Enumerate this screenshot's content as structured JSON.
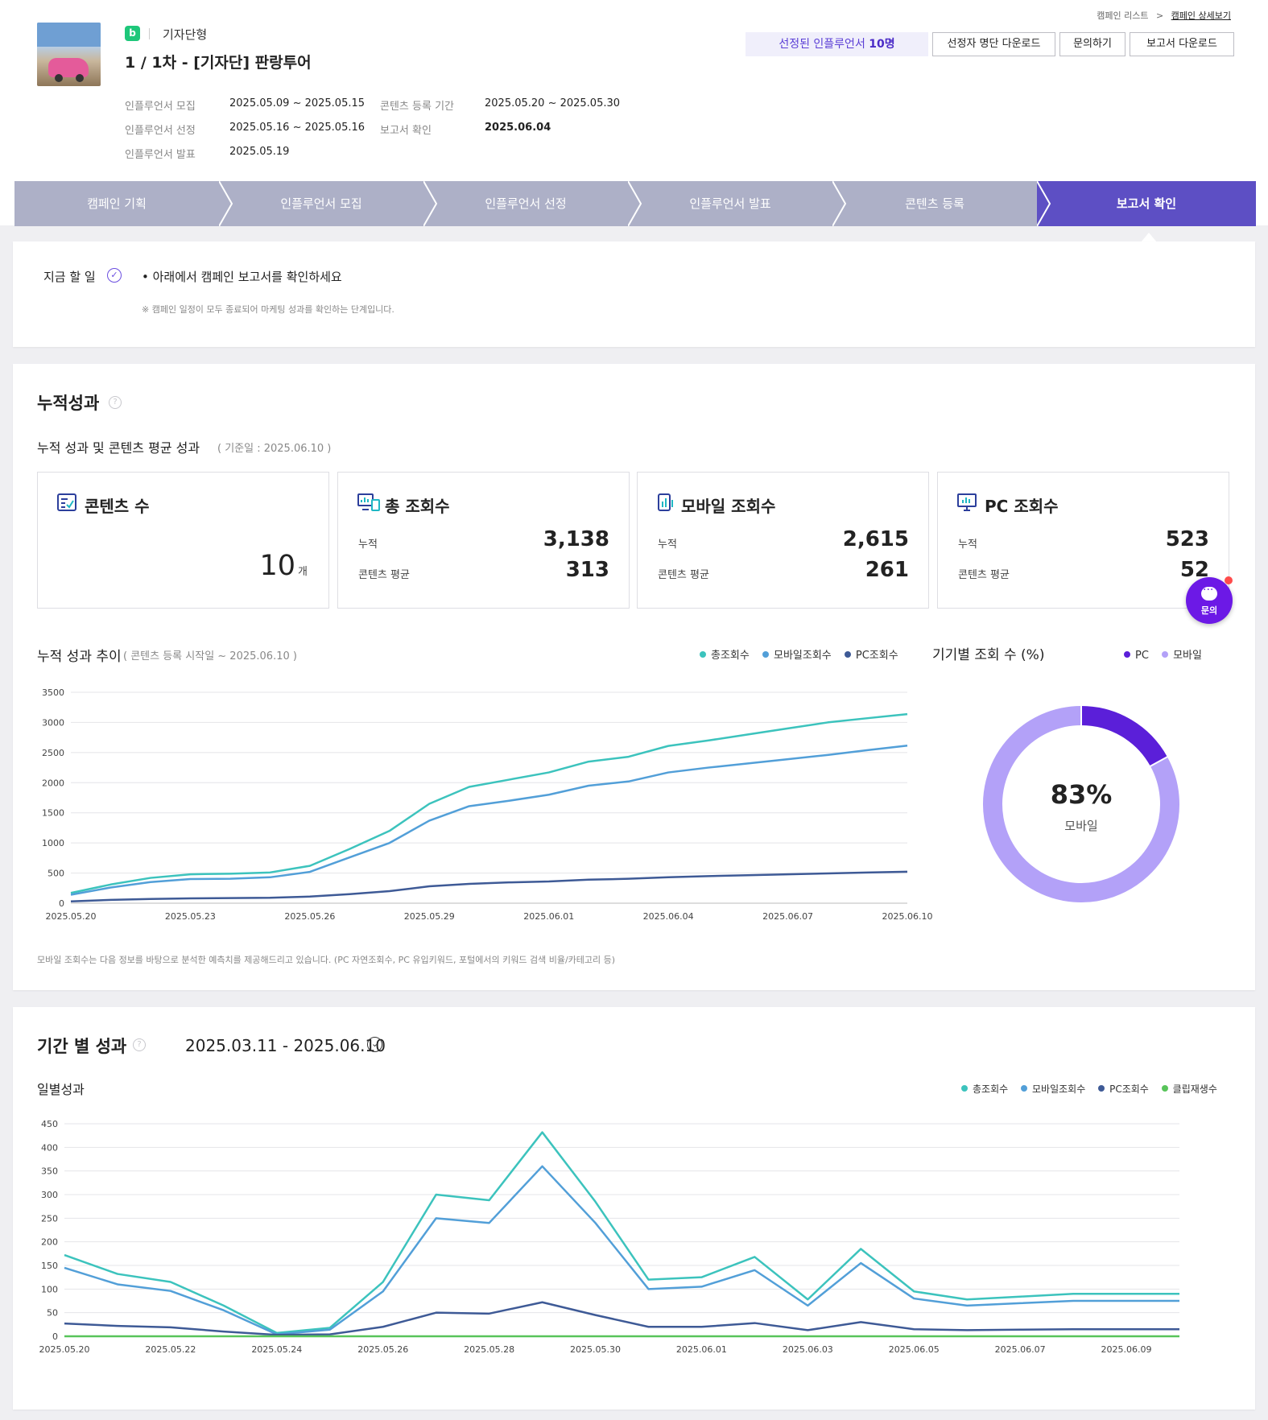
{
  "header": {
    "breadcrumb": [
      "캠페인 리스트",
      ">",
      "캠페인 상세보기"
    ],
    "type_badge": "b",
    "campaign_type": "기자단형",
    "campaign_title": "1 / 1차 - [기자단] 판랑투어",
    "meta": [
      {
        "label": "인플루언서 모집",
        "value": "2025.05.09 ~ 2025.05.15"
      },
      {
        "label": "인플루언서 선정",
        "value": "2025.05.16 ~ 2025.05.16"
      },
      {
        "label": "인플루언서 발표",
        "value": "2025.05.19"
      },
      {
        "label": "콘텐츠 등록 기간",
        "value": "2025.05.20 ~ 2025.05.30"
      },
      {
        "label": "보고서 확인",
        "value": "2025.06.04"
      }
    ],
    "selected_prefix": "선정된 인플루언서 ",
    "selected_count": "10명",
    "buttons": [
      "선정자 명단 다운로드",
      "문의하기",
      "보고서 다운로드"
    ]
  },
  "steps": [
    {
      "label": "캠페인 기획",
      "active": false
    },
    {
      "label": "인플루언서 모집",
      "active": false
    },
    {
      "label": "인플루언서 선정",
      "active": false
    },
    {
      "label": "인플루언서 발표",
      "active": false
    },
    {
      "label": "콘텐츠 등록",
      "active": false
    },
    {
      "label": "보고서 확인",
      "active": true
    }
  ],
  "todo": {
    "label": "지금 할 일",
    "item": "• 아래에서 캠페인 보고서를 확인하세요",
    "note": "※ 캠페인 일정이 모두 종료되어 마케팅 성과를 확인하는 단계입니다."
  },
  "cumulative": {
    "title": "누적성과",
    "subtitle": "누적 성과 및 콘텐츠 평균 성과",
    "subtitle_note": "( 기준일 : 2025.06.10 )",
    "cards": {
      "contents": {
        "title": "콘텐츠 수",
        "value": "10",
        "unit": "개"
      },
      "total": {
        "title": "총 조회수",
        "cum_label": "누적",
        "cum_value": "3,138",
        "avg_label": "콘텐츠 평균",
        "avg_value": "313"
      },
      "mobile": {
        "title": "모바일 조회수",
        "cum_label": "누적",
        "cum_value": "2,615",
        "avg_label": "콘텐츠 평균",
        "avg_value": "261"
      },
      "pc": {
        "title": "PC 조회수",
        "cum_label": "누적",
        "cum_value": "523",
        "avg_label": "콘텐츠 평균",
        "avg_value": "52"
      }
    },
    "trend_title": "누적 성과 추이",
    "trend_note": "( 콘텐츠 등록 시작일 ~ 2025.06.10 )",
    "legend": [
      "총조회수",
      "모바일조회수",
      "PC조회수"
    ],
    "device_title": "기기별 조회 수 (%)",
    "device_legend": [
      "PC",
      "모바일"
    ],
    "donut_value": "83%",
    "donut_label": "모바일",
    "footnote": "모바일 조회수는 다음 정보를 바탕으로 분석한 예측치를 제공해드리고 있습니다. (PC 자연조회수, PC 유입키워드, 포털에서의 키워드 검색 비율/카테고리 등)"
  },
  "period": {
    "title": "기간 별 성과",
    "date_range": "2025.03.11 - 2025.06.10",
    "daily_title": "일별성과",
    "legend": [
      "총조회수",
      "모바일조회수",
      "PC조회수",
      "클립재생수"
    ]
  },
  "chat": {
    "label": "문의"
  },
  "colors": {
    "total": "#3cc3bd",
    "mobile": "#529fd8",
    "pc": "#3e5a96",
    "clip": "#58c45a",
    "step_active": "#5d4fc4",
    "step_inactive": "#adb0c7",
    "donut_pc": "#5b1fd9",
    "donut_mobile": "#b3a1f8"
  },
  "chart_data": [
    {
      "type": "line",
      "title": "누적 성과 추이",
      "x": [
        "2025.05.20",
        "2025.05.21",
        "2025.05.22",
        "2025.05.23",
        "2025.05.24",
        "2025.05.25",
        "2025.05.26",
        "2025.05.27",
        "2025.05.28",
        "2025.05.29",
        "2025.05.30",
        "2025.05.31",
        "2025.06.01",
        "2025.06.02",
        "2025.06.03",
        "2025.06.04",
        "2025.06.05",
        "2025.06.06",
        "2025.06.07",
        "2025.06.08",
        "2025.06.09",
        "2025.06.10"
      ],
      "x_ticks": [
        "2025.05.20",
        "2025.05.23",
        "2025.05.26",
        "2025.05.29",
        "2025.06.01",
        "2025.06.04",
        "2025.06.07",
        "2025.06.10"
      ],
      "ylim": [
        0,
        3500
      ],
      "y_ticks": [
        0,
        500,
        1000,
        1500,
        2000,
        2500,
        3000,
        3500
      ],
      "grid": true,
      "legend": "top-right",
      "series": [
        {
          "name": "총조회수",
          "values": [
            170,
            310,
            420,
            480,
            490,
            510,
            620,
            900,
            1200,
            1650,
            1930,
            2050,
            2170,
            2350,
            2430,
            2610,
            2700,
            2800,
            2900,
            3000,
            3070,
            3138
          ]
        },
        {
          "name": "모바일조회수",
          "values": [
            140,
            260,
            350,
            400,
            405,
            430,
            520,
            760,
            1000,
            1370,
            1610,
            1700,
            1800,
            1950,
            2020,
            2170,
            2250,
            2320,
            2390,
            2460,
            2540,
            2615
          ]
        },
        {
          "name": "PC조회수",
          "values": [
            30,
            55,
            70,
            80,
            85,
            90,
            110,
            150,
            200,
            280,
            320,
            345,
            360,
            390,
            405,
            430,
            450,
            465,
            480,
            495,
            510,
            523
          ]
        }
      ]
    },
    {
      "type": "pie",
      "title": "기기별 조회 수 (%)",
      "categories": [
        "PC",
        "모바일"
      ],
      "values": [
        17,
        83
      ]
    },
    {
      "type": "line",
      "title": "일별성과",
      "x": [
        "2025.05.20",
        "2025.05.21",
        "2025.05.22",
        "2025.05.23",
        "2025.05.24",
        "2025.05.25",
        "2025.05.26",
        "2025.05.27",
        "2025.05.28",
        "2025.05.29",
        "2025.05.30",
        "2025.05.31",
        "2025.06.01",
        "2025.06.02",
        "2025.06.03",
        "2025.06.04",
        "2025.06.05",
        "2025.06.06",
        "2025.06.07",
        "2025.06.08",
        "2025.06.09",
        "2025.06.10"
      ],
      "x_ticks": [
        "2025.05.20",
        "2025.05.22",
        "2025.05.24",
        "2025.05.26",
        "2025.05.28",
        "2025.05.30",
        "2025.06.01",
        "2025.06.03",
        "2025.06.05",
        "2025.06.07",
        "2025.06.09"
      ],
      "ylim": [
        0,
        450
      ],
      "y_ticks": [
        0,
        50,
        100,
        150,
        200,
        250,
        300,
        350,
        400,
        450
      ],
      "grid": true,
      "legend": "top-right",
      "series": [
        {
          "name": "총조회수",
          "values": [
            172,
            132,
            115,
            65,
            7,
            18,
            115,
            300,
            288,
            432,
            285,
            120,
            125,
            168,
            78,
            185,
            95,
            78,
            84,
            90,
            90,
            90
          ]
        },
        {
          "name": "모바일조회수",
          "values": [
            145,
            110,
            96,
            55,
            4,
            14,
            95,
            250,
            240,
            360,
            240,
            100,
            105,
            140,
            65,
            155,
            80,
            65,
            70,
            75,
            75,
            75
          ]
        },
        {
          "name": "PC조회수",
          "values": [
            27,
            22,
            19,
            10,
            3,
            4,
            20,
            50,
            48,
            72,
            45,
            20,
            20,
            28,
            13,
            30,
            15,
            13,
            14,
            15,
            15,
            15
          ]
        },
        {
          "name": "클립재생수",
          "values": [
            0,
            0,
            0,
            0,
            0,
            0,
            0,
            0,
            0,
            0,
            0,
            0,
            0,
            0,
            0,
            0,
            0,
            0,
            0,
            0,
            0,
            0
          ]
        }
      ]
    }
  ]
}
